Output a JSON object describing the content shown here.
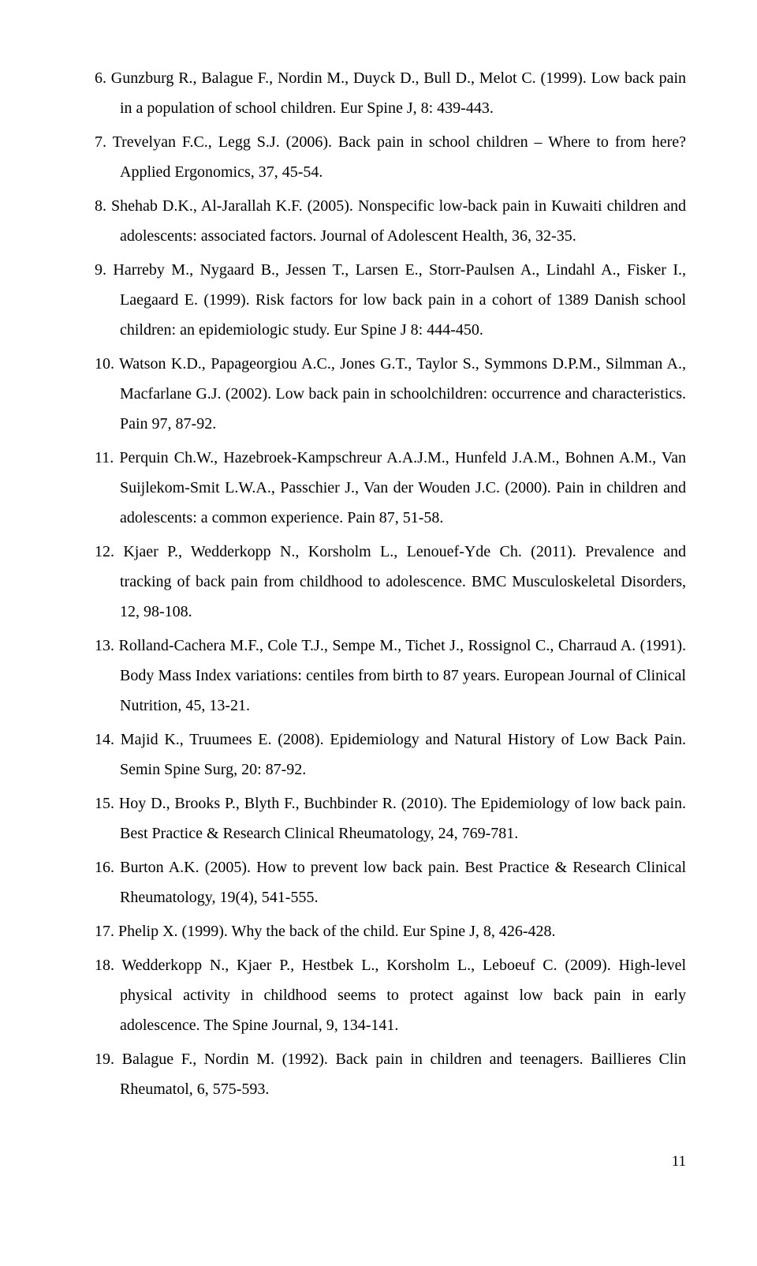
{
  "references": [
    {
      "n": "6.",
      "text": "Gunzburg R., Balague F., Nordin M., Duyck D., Bull D., Melot C. (1999). Low back pain in a population of school children. Eur Spine J, 8: 439-443."
    },
    {
      "n": "7.",
      "text": "Trevelyan F.C., Legg S.J. (2006). Back pain in school children – Where to from here? Applied Ergonomics, 37, 45-54."
    },
    {
      "n": "8.",
      "text": "Shehab D.K., Al-Jarallah K.F. (2005). Nonspecific low-back pain in Kuwaiti children and adolescents: associated factors. Journal of Adolescent Health, 36, 32-35."
    },
    {
      "n": "9.",
      "text": "Harreby M., Nygaard B., Jessen T., Larsen E., Storr-Paulsen A., Lindahl A., Fisker I., Laegaard E. (1999). Risk factors for low back pain in a cohort of 1389 Danish school children: an epidemiologic study. Eur Spine J 8: 444-450."
    },
    {
      "n": "10.",
      "text": "Watson K.D., Papageorgiou A.C., Jones G.T., Taylor S., Symmons D.P.M., Silmman A., Macfarlane G.J. (2002). Low back pain in schoolchildren: occurrence and characteristics. Pain 97, 87-92."
    },
    {
      "n": "11.",
      "text": "Perquin Ch.W., Hazebroek-Kampschreur A.A.J.M., Hunfeld J.A.M., Bohnen A.M., Van Suijlekom-Smit L.W.A., Passchier J., Van der Wouden J.C. (2000). Pain in children and adolescents: a common experience. Pain 87, 51-58."
    },
    {
      "n": "12.",
      "text": "Kjaer P., Wedderkopp N., Korsholm L., Lenouef-Yde Ch. (2011). Prevalence and tracking of back pain from childhood to adolescence. BMC Musculoskeletal Disorders, 12, 98-108."
    },
    {
      "n": "13.",
      "text": "Rolland-Cachera M.F., Cole T.J., Sempe M., Tichet J., Rossignol C., Charraud A. (1991). Body Mass Index variations: centiles from birth to 87 years. European Journal of Clinical Nutrition, 45, 13-21."
    },
    {
      "n": "14.",
      "text": "Majid K., Truumees E. (2008). Epidemiology and Natural History of Low Back Pain. Semin Spine Surg, 20: 87-92."
    },
    {
      "n": "15.",
      "text": "Hoy D., Brooks P., Blyth F., Buchbinder R. (2010). The Epidemiology of low back pain. Best Practice & Research Clinical Rheumatology, 24, 769-781."
    },
    {
      "n": "16.",
      "text": "Burton A.K. (2005). How to prevent low back pain. Best Practice & Research Clinical Rheumatology, 19(4), 541-555."
    },
    {
      "n": "17.",
      "text": "Phelip X. (1999). Why the back of the child. Eur Spine J, 8, 426-428."
    },
    {
      "n": "18.",
      "text": "Wedderkopp N., Kjaer P., Hestbek L., Korsholm L., Leboeuf C. (2009). High-level physical activity in childhood seems to protect against low back pain in early adolescence. The Spine Journal, 9, 134-141."
    },
    {
      "n": "19.",
      "text": "Balague F., Nordin M. (1992). Back pain in children and teenagers. Baillieres Clin Rheumatol, 6, 575-593."
    }
  ],
  "pageNumber": "11"
}
